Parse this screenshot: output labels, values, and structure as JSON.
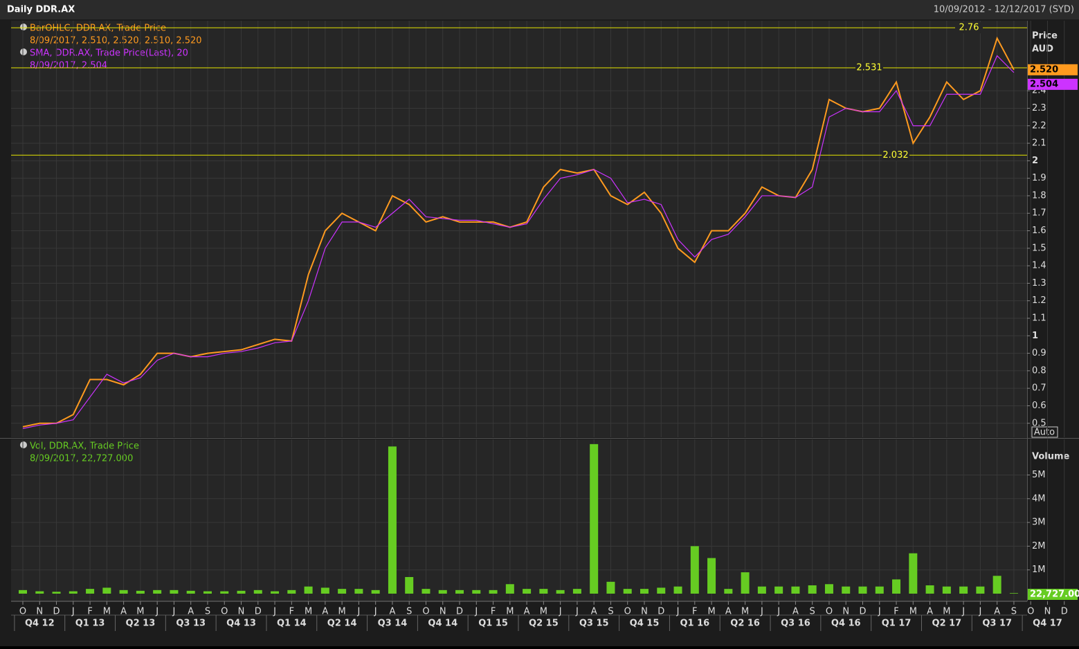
{
  "header": {
    "title": "Daily DDR.AX",
    "range": "10/09/2012 - 12/12/2017 (SYD)"
  },
  "chart_data": [
    {
      "type": "line",
      "axis_title": "Price",
      "axis_unit": "AUD",
      "scale_button": "Auto",
      "ylim": [
        0.42,
        2.8
      ],
      "yticks": [
        0.5,
        0.6,
        0.7,
        0.8,
        0.9,
        1,
        1.1,
        1.2,
        1.3,
        1.4,
        1.5,
        1.6,
        1.7,
        1.8,
        1.9,
        2,
        2.1,
        2.2,
        2.3,
        2.4
      ],
      "grid": true,
      "levels": [
        2.76,
        2.531,
        2.032
      ],
      "x": [
        "2012-10",
        "2012-11",
        "2012-12",
        "2013-01",
        "2013-02",
        "2013-03",
        "2013-04",
        "2013-05",
        "2013-06",
        "2013-07",
        "2013-08",
        "2013-09",
        "2013-10",
        "2013-11",
        "2013-12",
        "2014-01",
        "2014-02",
        "2014-03",
        "2014-04",
        "2014-05",
        "2014-06",
        "2014-07",
        "2014-08",
        "2014-09",
        "2014-10",
        "2014-11",
        "2014-12",
        "2015-01",
        "2015-02",
        "2015-03",
        "2015-04",
        "2015-05",
        "2015-06",
        "2015-07",
        "2015-08",
        "2015-09",
        "2015-10",
        "2015-11",
        "2015-12",
        "2016-01",
        "2016-02",
        "2016-03",
        "2016-04",
        "2016-05",
        "2016-06",
        "2016-07",
        "2016-08",
        "2016-09",
        "2016-10",
        "2016-11",
        "2016-12",
        "2017-01",
        "2017-02",
        "2017-03",
        "2017-04",
        "2017-05",
        "2017-06",
        "2017-07",
        "2017-08",
        "2017-09"
      ],
      "series": [
        {
          "name": "BarOHLC, DDR.AX, Trade Price",
          "legend_value": "8/09/2017, 2.510, 2.520, 2.510, 2.520",
          "last_label": "2.520",
          "color": "#ff9a1f",
          "values": [
            0.48,
            0.5,
            0.5,
            0.55,
            0.75,
            0.75,
            0.72,
            0.78,
            0.9,
            0.9,
            0.88,
            0.9,
            0.91,
            0.92,
            0.95,
            0.98,
            0.97,
            1.35,
            1.6,
            1.7,
            1.65,
            1.6,
            1.8,
            1.75,
            1.65,
            1.68,
            1.65,
            1.65,
            1.65,
            1.62,
            1.65,
            1.85,
            1.95,
            1.93,
            1.95,
            1.8,
            1.75,
            1.82,
            1.7,
            1.5,
            1.42,
            1.6,
            1.6,
            1.7,
            1.85,
            1.8,
            1.79,
            1.95,
            2.35,
            2.3,
            2.28,
            2.3,
            2.45,
            2.1,
            2.25,
            2.45,
            2.35,
            2.4,
            2.7,
            2.52
          ]
        },
        {
          "name": "SMA, DDR.AX, Trade Price(Last),  20",
          "legend_value": "8/09/2017, 2.504",
          "last_label": "2.504",
          "color": "#cc33ff",
          "values": [
            0.47,
            0.49,
            0.5,
            0.52,
            0.65,
            0.78,
            0.73,
            0.76,
            0.86,
            0.9,
            0.88,
            0.88,
            0.9,
            0.91,
            0.93,
            0.96,
            0.97,
            1.2,
            1.5,
            1.65,
            1.65,
            1.62,
            1.7,
            1.78,
            1.68,
            1.67,
            1.66,
            1.66,
            1.64,
            1.62,
            1.64,
            1.78,
            1.9,
            1.92,
            1.95,
            1.9,
            1.76,
            1.78,
            1.75,
            1.55,
            1.45,
            1.55,
            1.58,
            1.68,
            1.8,
            1.8,
            1.79,
            1.85,
            2.25,
            2.3,
            2.28,
            2.28,
            2.4,
            2.2,
            2.2,
            2.38,
            2.38,
            2.38,
            2.6,
            2.504
          ]
        }
      ]
    },
    {
      "type": "bar",
      "axis_title": "Volume",
      "ylim": [
        0,
        6500000
      ],
      "yticks": [
        {
          "value": 1000000,
          "label": "1M"
        },
        {
          "value": 2000000,
          "label": "2M"
        },
        {
          "value": 3000000,
          "label": "3M"
        },
        {
          "value": 4000000,
          "label": "4M"
        },
        {
          "value": 5000000,
          "label": "5M"
        }
      ],
      "grid": true,
      "x": [
        "2012-10",
        "2012-11",
        "2012-12",
        "2013-01",
        "2013-02",
        "2013-03",
        "2013-04",
        "2013-05",
        "2013-06",
        "2013-07",
        "2013-08",
        "2013-09",
        "2013-10",
        "2013-11",
        "2013-12",
        "2014-01",
        "2014-02",
        "2014-03",
        "2014-04",
        "2014-05",
        "2014-06",
        "2014-07",
        "2014-08",
        "2014-09",
        "2014-10",
        "2014-11",
        "2014-12",
        "2015-01",
        "2015-02",
        "2015-03",
        "2015-04",
        "2015-05",
        "2015-06",
        "2015-07",
        "2015-08",
        "2015-09",
        "2015-10",
        "2015-11",
        "2015-12",
        "2016-01",
        "2016-02",
        "2016-03",
        "2016-04",
        "2016-05",
        "2016-06",
        "2016-07",
        "2016-08",
        "2016-09",
        "2016-10",
        "2016-11",
        "2016-12",
        "2017-01",
        "2017-02",
        "2017-03",
        "2017-04",
        "2017-05",
        "2017-06",
        "2017-07",
        "2017-08",
        "2017-09"
      ],
      "series": [
        {
          "name": "Vol, DDR.AX, Trade Price",
          "legend_value": "8/09/2017, 22,727.000",
          "last_label": "22,727.00",
          "color": "#66cc22",
          "values": [
            150000,
            100000,
            80000,
            100000,
            200000,
            250000,
            150000,
            120000,
            150000,
            150000,
            120000,
            100000,
            100000,
            120000,
            150000,
            100000,
            150000,
            300000,
            250000,
            200000,
            200000,
            150000,
            6200000,
            700000,
            200000,
            150000,
            150000,
            150000,
            150000,
            400000,
            200000,
            200000,
            150000,
            200000,
            6300000,
            500000,
            200000,
            200000,
            250000,
            300000,
            2000000,
            1500000,
            200000,
            900000,
            300000,
            300000,
            300000,
            350000,
            400000,
            300000,
            300000,
            300000,
            600000,
            1700000,
            350000,
            300000,
            300000,
            300000,
            750000,
            22727
          ]
        }
      ],
      "xticks": [
        {
          "value": "2012-10",
          "label": "O"
        },
        {
          "value": "2012-11",
          "label": "N"
        },
        {
          "value": "2012-12",
          "label": "D"
        },
        {
          "value": "2013-01",
          "label": "J"
        },
        {
          "value": "2013-02",
          "label": "F"
        },
        {
          "value": "2013-03",
          "label": "M"
        },
        {
          "value": "2013-04",
          "label": "A"
        },
        {
          "value": "2013-05",
          "label": "M"
        },
        {
          "value": "2013-06",
          "label": "J"
        },
        {
          "value": "2013-07",
          "label": "J"
        },
        {
          "value": "2013-08",
          "label": "A"
        },
        {
          "value": "2013-09",
          "label": "S"
        },
        {
          "value": "2013-10",
          "label": "O"
        },
        {
          "value": "2013-11",
          "label": "N"
        },
        {
          "value": "2013-12",
          "label": "D"
        },
        {
          "value": "2014-01",
          "label": "J"
        },
        {
          "value": "2014-02",
          "label": "F"
        },
        {
          "value": "2014-03",
          "label": "M"
        },
        {
          "value": "2014-04",
          "label": "A"
        },
        {
          "value": "2014-05",
          "label": "M"
        },
        {
          "value": "2014-06",
          "label": "J"
        },
        {
          "value": "2014-07",
          "label": "J"
        },
        {
          "value": "2014-08",
          "label": "A"
        },
        {
          "value": "2014-09",
          "label": "S"
        },
        {
          "value": "2014-10",
          "label": "O"
        },
        {
          "value": "2014-11",
          "label": "N"
        },
        {
          "value": "2014-12",
          "label": "D"
        },
        {
          "value": "2015-01",
          "label": "J"
        },
        {
          "value": "2015-02",
          "label": "F"
        },
        {
          "value": "2015-03",
          "label": "M"
        },
        {
          "value": "2015-04",
          "label": "A"
        },
        {
          "value": "2015-05",
          "label": "M"
        },
        {
          "value": "2015-06",
          "label": "J"
        },
        {
          "value": "2015-07",
          "label": "J"
        },
        {
          "value": "2015-08",
          "label": "A"
        },
        {
          "value": "2015-09",
          "label": "S"
        },
        {
          "value": "2015-10",
          "label": "O"
        },
        {
          "value": "2015-11",
          "label": "N"
        },
        {
          "value": "2015-12",
          "label": "D"
        },
        {
          "value": "2016-01",
          "label": "J"
        },
        {
          "value": "2016-02",
          "label": "F"
        },
        {
          "value": "2016-03",
          "label": "M"
        },
        {
          "value": "2016-04",
          "label": "A"
        },
        {
          "value": "2016-05",
          "label": "M"
        },
        {
          "value": "2016-06",
          "label": "J"
        },
        {
          "value": "2016-07",
          "label": "J"
        },
        {
          "value": "2016-08",
          "label": "A"
        },
        {
          "value": "2016-09",
          "label": "S"
        },
        {
          "value": "2016-10",
          "label": "O"
        },
        {
          "value": "2016-11",
          "label": "N"
        },
        {
          "value": "2016-12",
          "label": "D"
        },
        {
          "value": "2017-01",
          "label": "J"
        },
        {
          "value": "2017-02",
          "label": "F"
        },
        {
          "value": "2017-03",
          "label": "M"
        },
        {
          "value": "2017-04",
          "label": "A"
        },
        {
          "value": "2017-05",
          "label": "M"
        },
        {
          "value": "2017-06",
          "label": "J"
        },
        {
          "value": "2017-07",
          "label": "J"
        },
        {
          "value": "2017-08",
          "label": "A"
        },
        {
          "value": "2017-09",
          "label": "S"
        },
        {
          "value": "2017-10",
          "label": "O"
        },
        {
          "value": "2017-11",
          "label": "N"
        },
        {
          "value": "2017-12",
          "label": "D"
        }
      ],
      "quarters": [
        {
          "value": "2012-10",
          "label": "Q4 12"
        },
        {
          "value": "2013-01",
          "label": "Q1 13"
        },
        {
          "value": "2013-04",
          "label": "Q2 13"
        },
        {
          "value": "2013-07",
          "label": "Q3 13"
        },
        {
          "value": "2013-10",
          "label": "Q4 13"
        },
        {
          "value": "2014-01",
          "label": "Q1 14"
        },
        {
          "value": "2014-04",
          "label": "Q2 14"
        },
        {
          "value": "2014-07",
          "label": "Q3 14"
        },
        {
          "value": "2014-10",
          "label": "Q4 14"
        },
        {
          "value": "2015-01",
          "label": "Q1 15"
        },
        {
          "value": "2015-04",
          "label": "Q2 15"
        },
        {
          "value": "2015-07",
          "label": "Q3 15"
        },
        {
          "value": "2015-10",
          "label": "Q4 15"
        },
        {
          "value": "2016-01",
          "label": "Q1 16"
        },
        {
          "value": "2016-04",
          "label": "Q2 16"
        },
        {
          "value": "2016-07",
          "label": "Q3 16"
        },
        {
          "value": "2016-10",
          "label": "Q4 16"
        },
        {
          "value": "2017-01",
          "label": "Q1 17"
        },
        {
          "value": "2017-04",
          "label": "Q2 17"
        },
        {
          "value": "2017-07",
          "label": "Q3 17"
        },
        {
          "value": "2017-10",
          "label": "Q4 17"
        }
      ]
    }
  ]
}
